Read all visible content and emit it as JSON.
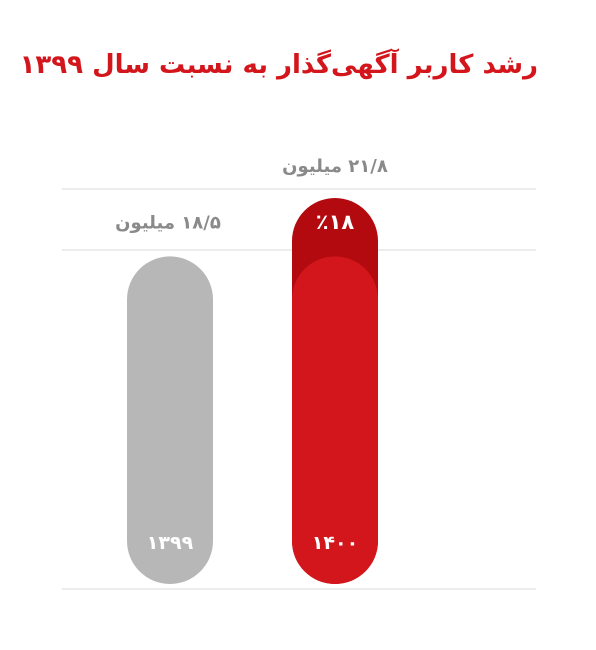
{
  "chart_data": {
    "type": "bar",
    "title": "رشد کاربر آگهی‌گذار به نسبت سال ۱۳۹۹",
    "categories": [
      "۱۳۹۹",
      "۱۴۰۰"
    ],
    "values": [
      18.5,
      21.8
    ],
    "value_labels": [
      "۱۸/۵ میلیون",
      "۲۱/۸ میلیون"
    ],
    "growth_label": "٪۱۸",
    "unit": "میلیون",
    "ylim": [
      0,
      21.8
    ],
    "colors": {
      "bar_1399": "#b7b7b7",
      "bar_1400": "#d3161c",
      "growth_segment": "#b30a10",
      "title": "#d3161c",
      "value_label": "#8a8a8a",
      "gridline": "#d9d9d9"
    }
  }
}
